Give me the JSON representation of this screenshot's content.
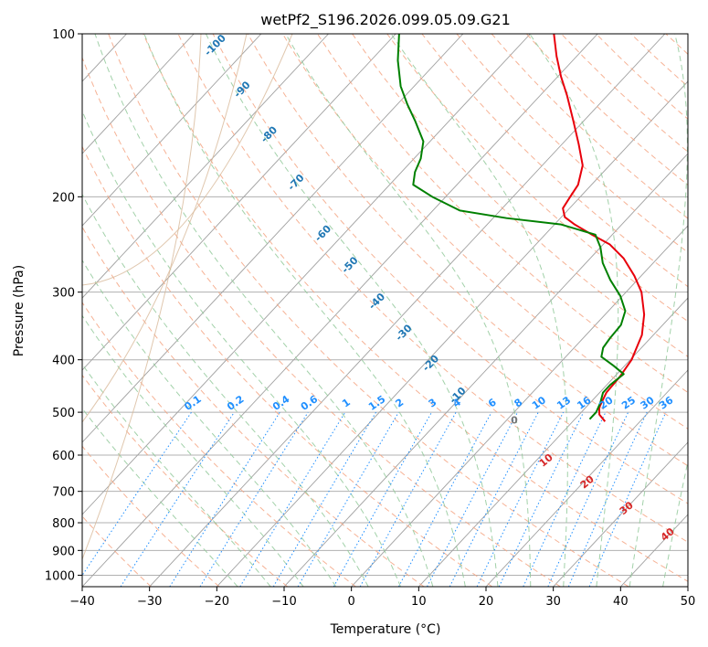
{
  "chart_data": {
    "type": "line",
    "title": "wetPf2_S196.2026.099.05.09.G21",
    "xlabel": "Temperature (°C)",
    "ylabel": "Pressure (hPa)",
    "xlim": [
      -40,
      50
    ],
    "ylim": [
      1050,
      100
    ],
    "x_ticks": [
      -40,
      -30,
      -20,
      -10,
      0,
      10,
      20,
      30,
      40,
      50
    ],
    "y_ticks": [
      100,
      200,
      300,
      400,
      500,
      600,
      700,
      800,
      900,
      1000
    ],
    "skew_deg_per_decade": 75,
    "series": [
      {
        "name": "Temperature",
        "color": "#e8000b",
        "points": [
          {
            "p": 520,
            "t": 14.8
          },
          {
            "p": 505,
            "t": 13.0
          },
          {
            "p": 490,
            "t": 12.0
          },
          {
            "p": 460,
            "t": 11.0
          },
          {
            "p": 430,
            "t": 10.8
          },
          {
            "p": 400,
            "t": 10.2
          },
          {
            "p": 360,
            "t": 8.3
          },
          {
            "p": 330,
            "t": 5.8
          },
          {
            "p": 300,
            "t": 2.3
          },
          {
            "p": 280,
            "t": -1.0
          },
          {
            "p": 260,
            "t": -5.0
          },
          {
            "p": 245,
            "t": -9.0
          },
          {
            "p": 235,
            "t": -13.0
          },
          {
            "p": 225,
            "t": -17.0
          },
          {
            "p": 218,
            "t": -19.5
          },
          {
            "p": 210,
            "t": -21.0
          },
          {
            "p": 200,
            "t": -21.5
          },
          {
            "p": 190,
            "t": -22.0
          },
          {
            "p": 175,
            "t": -24.0
          },
          {
            "p": 160,
            "t": -27.5
          },
          {
            "p": 145,
            "t": -31.5
          },
          {
            "p": 130,
            "t": -36.0
          },
          {
            "p": 120,
            "t": -39.5
          },
          {
            "p": 110,
            "t": -43.0
          },
          {
            "p": 100,
            "t": -46.5
          }
        ]
      },
      {
        "name": "Dewpoint",
        "color": "#008000",
        "points": [
          {
            "p": 515,
            "t": 12.2
          },
          {
            "p": 500,
            "t": 12.2
          },
          {
            "p": 480,
            "t": 11.5
          },
          {
            "p": 460,
            "t": 10.5
          },
          {
            "p": 445,
            "t": 10.5
          },
          {
            "p": 425,
            "t": 11.0
          },
          {
            "p": 410,
            "t": 8.3
          },
          {
            "p": 395,
            "t": 5.3
          },
          {
            "p": 380,
            "t": 4.3
          },
          {
            "p": 365,
            "t": 4.0
          },
          {
            "p": 345,
            "t": 3.8
          },
          {
            "p": 325,
            "t": 2.5
          },
          {
            "p": 305,
            "t": -0.3
          },
          {
            "p": 285,
            "t": -4.0
          },
          {
            "p": 265,
            "t": -7.5
          },
          {
            "p": 248,
            "t": -10.0
          },
          {
            "p": 235,
            "t": -12.5
          },
          {
            "p": 225,
            "t": -19.0
          },
          {
            "p": 219,
            "t": -28.0
          },
          {
            "p": 212,
            "t": -36.0
          },
          {
            "p": 200,
            "t": -42.0
          },
          {
            "p": 190,
            "t": -46.5
          },
          {
            "p": 180,
            "t": -48.0
          },
          {
            "p": 170,
            "t": -49.0
          },
          {
            "p": 158,
            "t": -51.0
          },
          {
            "p": 145,
            "t": -55.0
          },
          {
            "p": 135,
            "t": -58.5
          },
          {
            "p": 125,
            "t": -62.0
          },
          {
            "p": 112,
            "t": -66.0
          },
          {
            "p": 100,
            "t": -69.5
          }
        ]
      }
    ],
    "dry_adiabat_labels": [
      "10",
      "20",
      "30",
      "40"
    ],
    "moist_adiabat_labels": [
      "-100",
      "-90",
      "-80",
      "-70",
      "-60",
      "-50",
      "-40",
      "-30",
      "-20",
      "-10"
    ],
    "mixing_ratio_labels": [
      "0.1",
      "0.2",
      "0.4",
      "0.6",
      "1",
      "1.5",
      "2",
      "3",
      "4",
      "6",
      "8",
      "10",
      "13",
      "16",
      "20",
      "25",
      "30",
      "36"
    ],
    "zero_isotherm_label": "0",
    "colors": {
      "isotherm": "#a0a0a0",
      "dry_adiabat": "#f4a582",
      "moist_adiabat": "#92c99a",
      "mixing_ratio": "#1f8fff",
      "tan_curve": "#d8b99a"
    }
  }
}
